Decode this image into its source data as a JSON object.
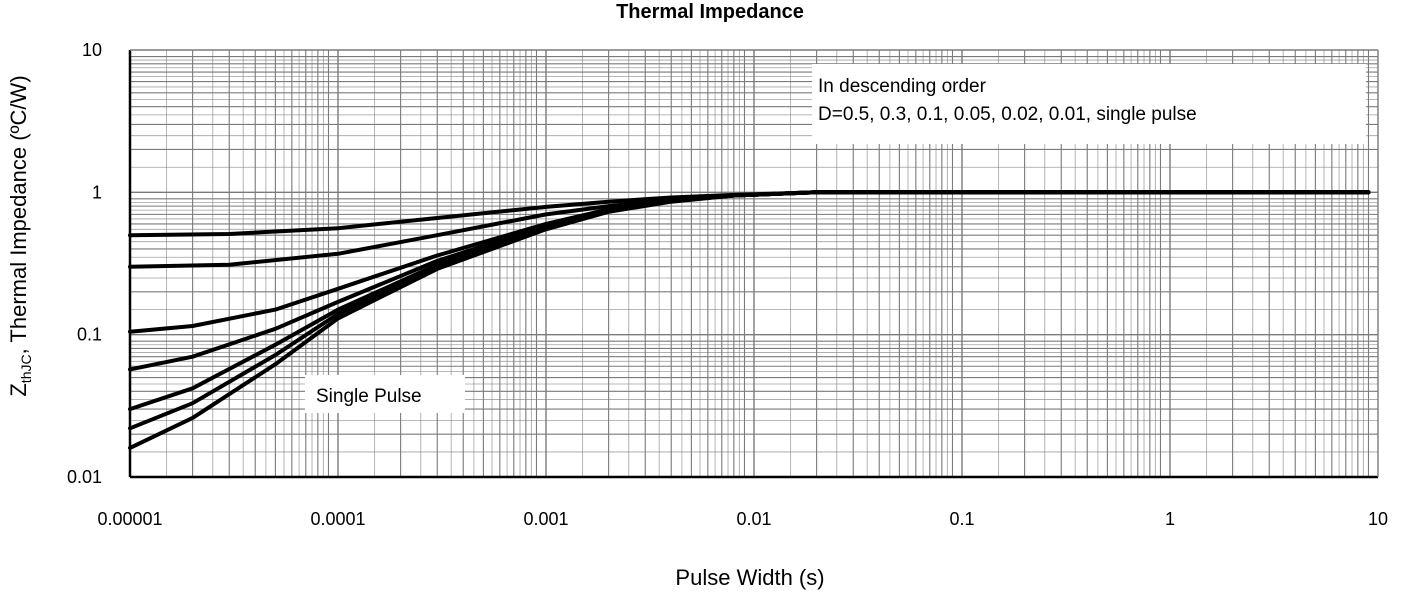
{
  "chart_data": {
    "type": "line",
    "title": "Thermal Impedance",
    "xlabel": "Pulse Width (s)",
    "ylabel": {
      "prefix": "Z",
      "sub": "thJC",
      "suffix": ", Thermal Impedance (ºC/W)"
    },
    "x_scale": "log",
    "y_scale": "log",
    "xlim": [
      1e-05,
      10
    ],
    "ylim": [
      0.01,
      10
    ],
    "grid": true,
    "x_ticks": [
      {
        "value": 1e-05,
        "label": "0.00001"
      },
      {
        "value": 0.0001,
        "label": "0.0001"
      },
      {
        "value": 0.001,
        "label": "0.001"
      },
      {
        "value": 0.01,
        "label": "0.01"
      },
      {
        "value": 0.1,
        "label": "0.1"
      },
      {
        "value": 1,
        "label": "1"
      },
      {
        "value": 10,
        "label": "10"
      }
    ],
    "y_ticks": [
      {
        "value": 0.01,
        "label": "0.01"
      },
      {
        "value": 0.1,
        "label": "0.1"
      },
      {
        "value": 1,
        "label": "1"
      },
      {
        "value": 10,
        "label": "10"
      }
    ],
    "legend_text": [
      "In descending order",
      "D=0.5, 0.3, 0.1, 0.05, 0.02, 0.01, single pulse"
    ],
    "legend_position": "top-right",
    "annotation": "Single Pulse",
    "series": [
      {
        "x": [
          1e-05,
          3e-05,
          0.0001,
          0.0003,
          0.001,
          0.002,
          0.004,
          0.008,
          0.02,
          9
        ],
        "y": [
          0.5,
          0.51,
          0.56,
          0.66,
          0.79,
          0.86,
          0.92,
          0.96,
          1.0,
          1.0
        ]
      },
      {
        "x": [
          1e-05,
          3e-05,
          0.0001,
          0.0003,
          0.001,
          0.002,
          0.004,
          0.008,
          0.02,
          9
        ],
        "y": [
          0.3,
          0.31,
          0.37,
          0.5,
          0.7,
          0.8,
          0.89,
          0.95,
          1.0,
          1.0
        ]
      },
      {
        "x": [
          1e-05,
          2e-05,
          5e-05,
          0.0001,
          0.0003,
          0.001,
          0.002,
          0.004,
          0.008,
          0.02,
          9
        ],
        "y": [
          0.105,
          0.115,
          0.15,
          0.21,
          0.36,
          0.6,
          0.76,
          0.88,
          0.95,
          1.0,
          1.0
        ]
      },
      {
        "x": [
          1e-05,
          2e-05,
          5e-05,
          0.0001,
          0.0003,
          0.001,
          0.002,
          0.004,
          0.008,
          0.02,
          9
        ],
        "y": [
          0.057,
          0.07,
          0.11,
          0.17,
          0.33,
          0.58,
          0.75,
          0.87,
          0.95,
          1.0,
          1.0
        ]
      },
      {
        "x": [
          1e-05,
          2e-05,
          5e-05,
          0.0001,
          0.0003,
          0.001,
          0.002,
          0.004,
          0.008,
          0.02,
          9
        ],
        "y": [
          0.03,
          0.042,
          0.085,
          0.15,
          0.31,
          0.57,
          0.74,
          0.87,
          0.95,
          1.0,
          1.0
        ]
      },
      {
        "x": [
          1e-05,
          2e-05,
          5e-05,
          0.0001,
          0.0003,
          0.001,
          0.002,
          0.004,
          0.008,
          0.02,
          9
        ],
        "y": [
          0.022,
          0.033,
          0.072,
          0.14,
          0.3,
          0.56,
          0.74,
          0.87,
          0.95,
          1.0,
          1.0
        ]
      },
      {
        "x": [
          1e-05,
          2e-05,
          5e-05,
          0.0001,
          0.0003,
          0.001,
          0.002,
          0.004,
          0.008,
          0.02,
          9
        ],
        "y": [
          0.016,
          0.026,
          0.062,
          0.13,
          0.29,
          0.55,
          0.73,
          0.86,
          0.95,
          1.0,
          1.0
        ]
      }
    ],
    "colors": {
      "line": "#000000",
      "grid": "#7a7a7a",
      "axis": "#000000",
      "background": "#ffffff"
    }
  }
}
